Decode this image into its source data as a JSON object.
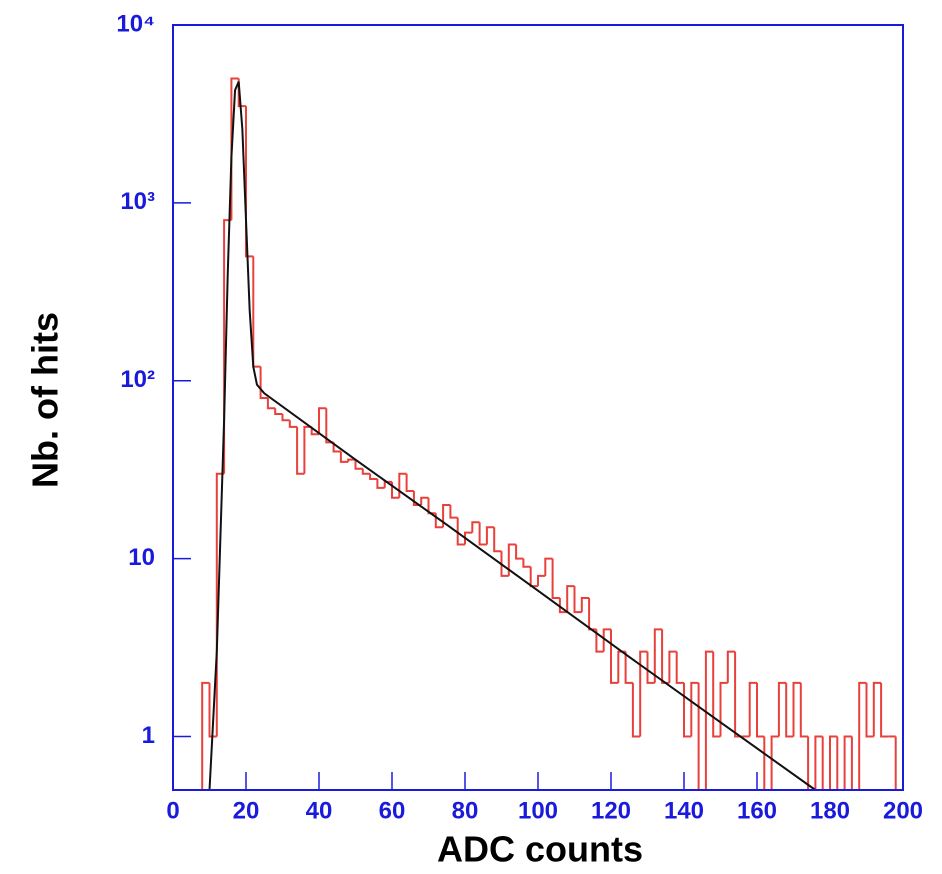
{
  "chart_data": {
    "type": "histogram",
    "xlabel": "ADC counts",
    "ylabel": "Nb. of hits",
    "log_y": true,
    "xlim": [
      0,
      200
    ],
    "ylim": [
      0.5,
      10000
    ],
    "xticks": [
      0,
      20,
      40,
      60,
      80,
      100,
      120,
      140,
      160,
      180,
      200
    ],
    "yticks": [
      {
        "value": 1,
        "label": "1"
      },
      {
        "value": 10,
        "label": "10"
      },
      {
        "value": 100,
        "label": "10²"
      },
      {
        "value": 1000,
        "label": "10³"
      },
      {
        "value": 10000,
        "label": "10⁴"
      }
    ],
    "frame_color": "#1a1adc",
    "histogram": {
      "color": "#e8403a",
      "bins": [
        0,
        2,
        4,
        6,
        8,
        10,
        12,
        14,
        16,
        18,
        20,
        22,
        24,
        26,
        28,
        30,
        32,
        34,
        36,
        38,
        40,
        42,
        44,
        46,
        48,
        50,
        52,
        54,
        56,
        58,
        60,
        62,
        64,
        66,
        68,
        70,
        72,
        74,
        76,
        78,
        80,
        82,
        84,
        86,
        88,
        90,
        92,
        94,
        96,
        98,
        100,
        102,
        104,
        106,
        108,
        110,
        112,
        114,
        116,
        118,
        120,
        122,
        124,
        126,
        128,
        130,
        132,
        134,
        136,
        138,
        140,
        142,
        144,
        146,
        148,
        150,
        152,
        154,
        156,
        158,
        160,
        162,
        164,
        166,
        168,
        170,
        172,
        174,
        176,
        178,
        180,
        182,
        184,
        186,
        188,
        190,
        192,
        194,
        196,
        198,
        200
      ],
      "values": [
        0,
        0,
        0,
        0,
        2,
        1,
        30,
        800,
        5000,
        3500,
        500,
        120,
        80,
        70,
        65,
        60,
        55,
        30,
        55,
        50,
        70,
        45,
        40,
        35,
        36,
        32,
        30,
        28,
        25,
        27,
        22,
        30,
        24,
        20,
        22,
        18,
        15,
        20,
        17,
        12,
        14,
        16,
        12,
        15,
        11,
        8,
        12,
        10,
        9,
        7,
        8,
        10,
        6,
        5,
        7,
        5,
        6,
        4,
        3,
        4,
        2,
        3,
        2,
        1,
        3,
        2,
        4,
        2,
        3,
        2,
        1,
        2,
        0,
        3,
        1,
        2,
        3,
        1,
        1,
        2,
        1,
        0,
        1,
        2,
        1,
        2,
        1,
        0,
        1,
        0,
        1,
        0,
        1,
        0,
        2,
        1,
        2,
        1,
        1,
        0
      ]
    },
    "fit": {
      "color": "#111111",
      "x": [
        10,
        12,
        14,
        15,
        16,
        17,
        18,
        19,
        20,
        21,
        22,
        23,
        25,
        50,
        75,
        100,
        125,
        150,
        176
      ],
      "values": [
        0.5,
        3,
        60,
        400,
        1800,
        4300,
        4800,
        2600,
        800,
        250,
        120,
        95,
        85,
        36,
        15.5,
        6.6,
        2.8,
        1.2,
        0.5
      ]
    }
  }
}
